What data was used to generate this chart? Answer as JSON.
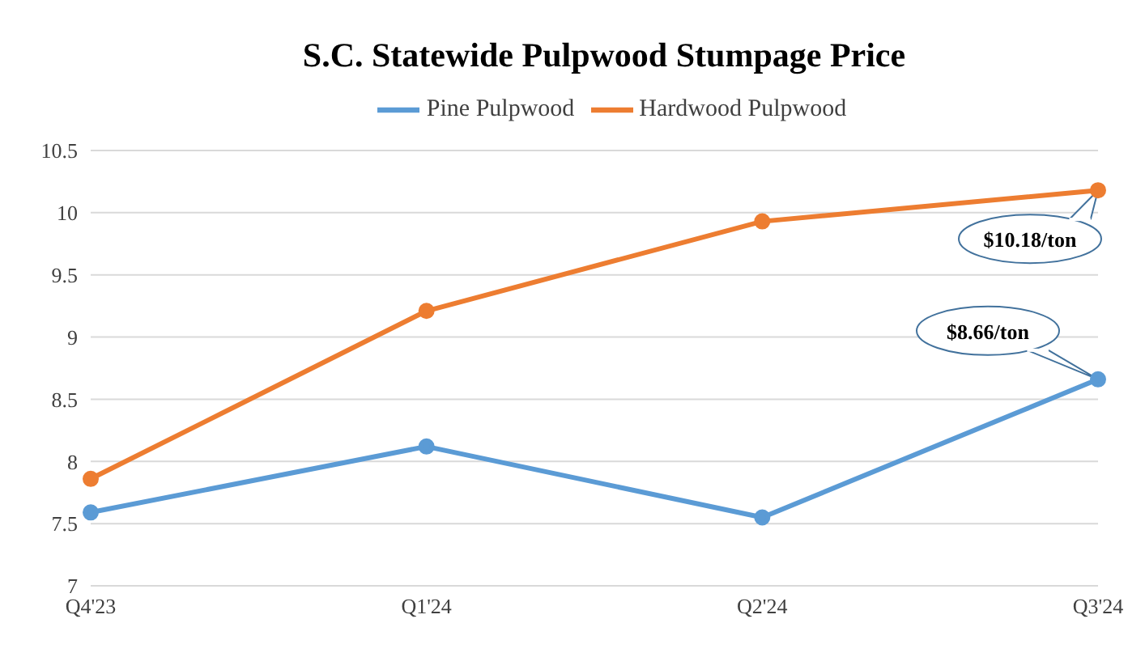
{
  "chart_data": {
    "type": "line",
    "title": "S.C. Statewide Pulpwood Stumpage Price",
    "categories": [
      "Q4'23",
      "Q1'24",
      "Q2'24",
      "Q3'24"
    ],
    "series": [
      {
        "name": "Pine Pulpwood",
        "color": "#5b9bd5",
        "values": [
          7.59,
          8.12,
          7.55,
          8.66
        ]
      },
      {
        "name": "Hardwood Pulpwood",
        "color": "#ed7d31",
        "values": [
          7.86,
          9.21,
          9.93,
          10.18
        ]
      }
    ],
    "ylim": [
      7,
      10.5
    ],
    "yticks": [
      7,
      7.5,
      8,
      8.5,
      9,
      9.5,
      10,
      10.5
    ],
    "grid": "y",
    "legend": "top",
    "marker": "circle",
    "line_style": "solid",
    "annotations": [
      {
        "text": "$10.18/ton",
        "x": "Q3'24",
        "y": 10.18
      },
      {
        "text": "$8.66/ton",
        "x": "Q3'24",
        "y": 8.66
      }
    ]
  }
}
